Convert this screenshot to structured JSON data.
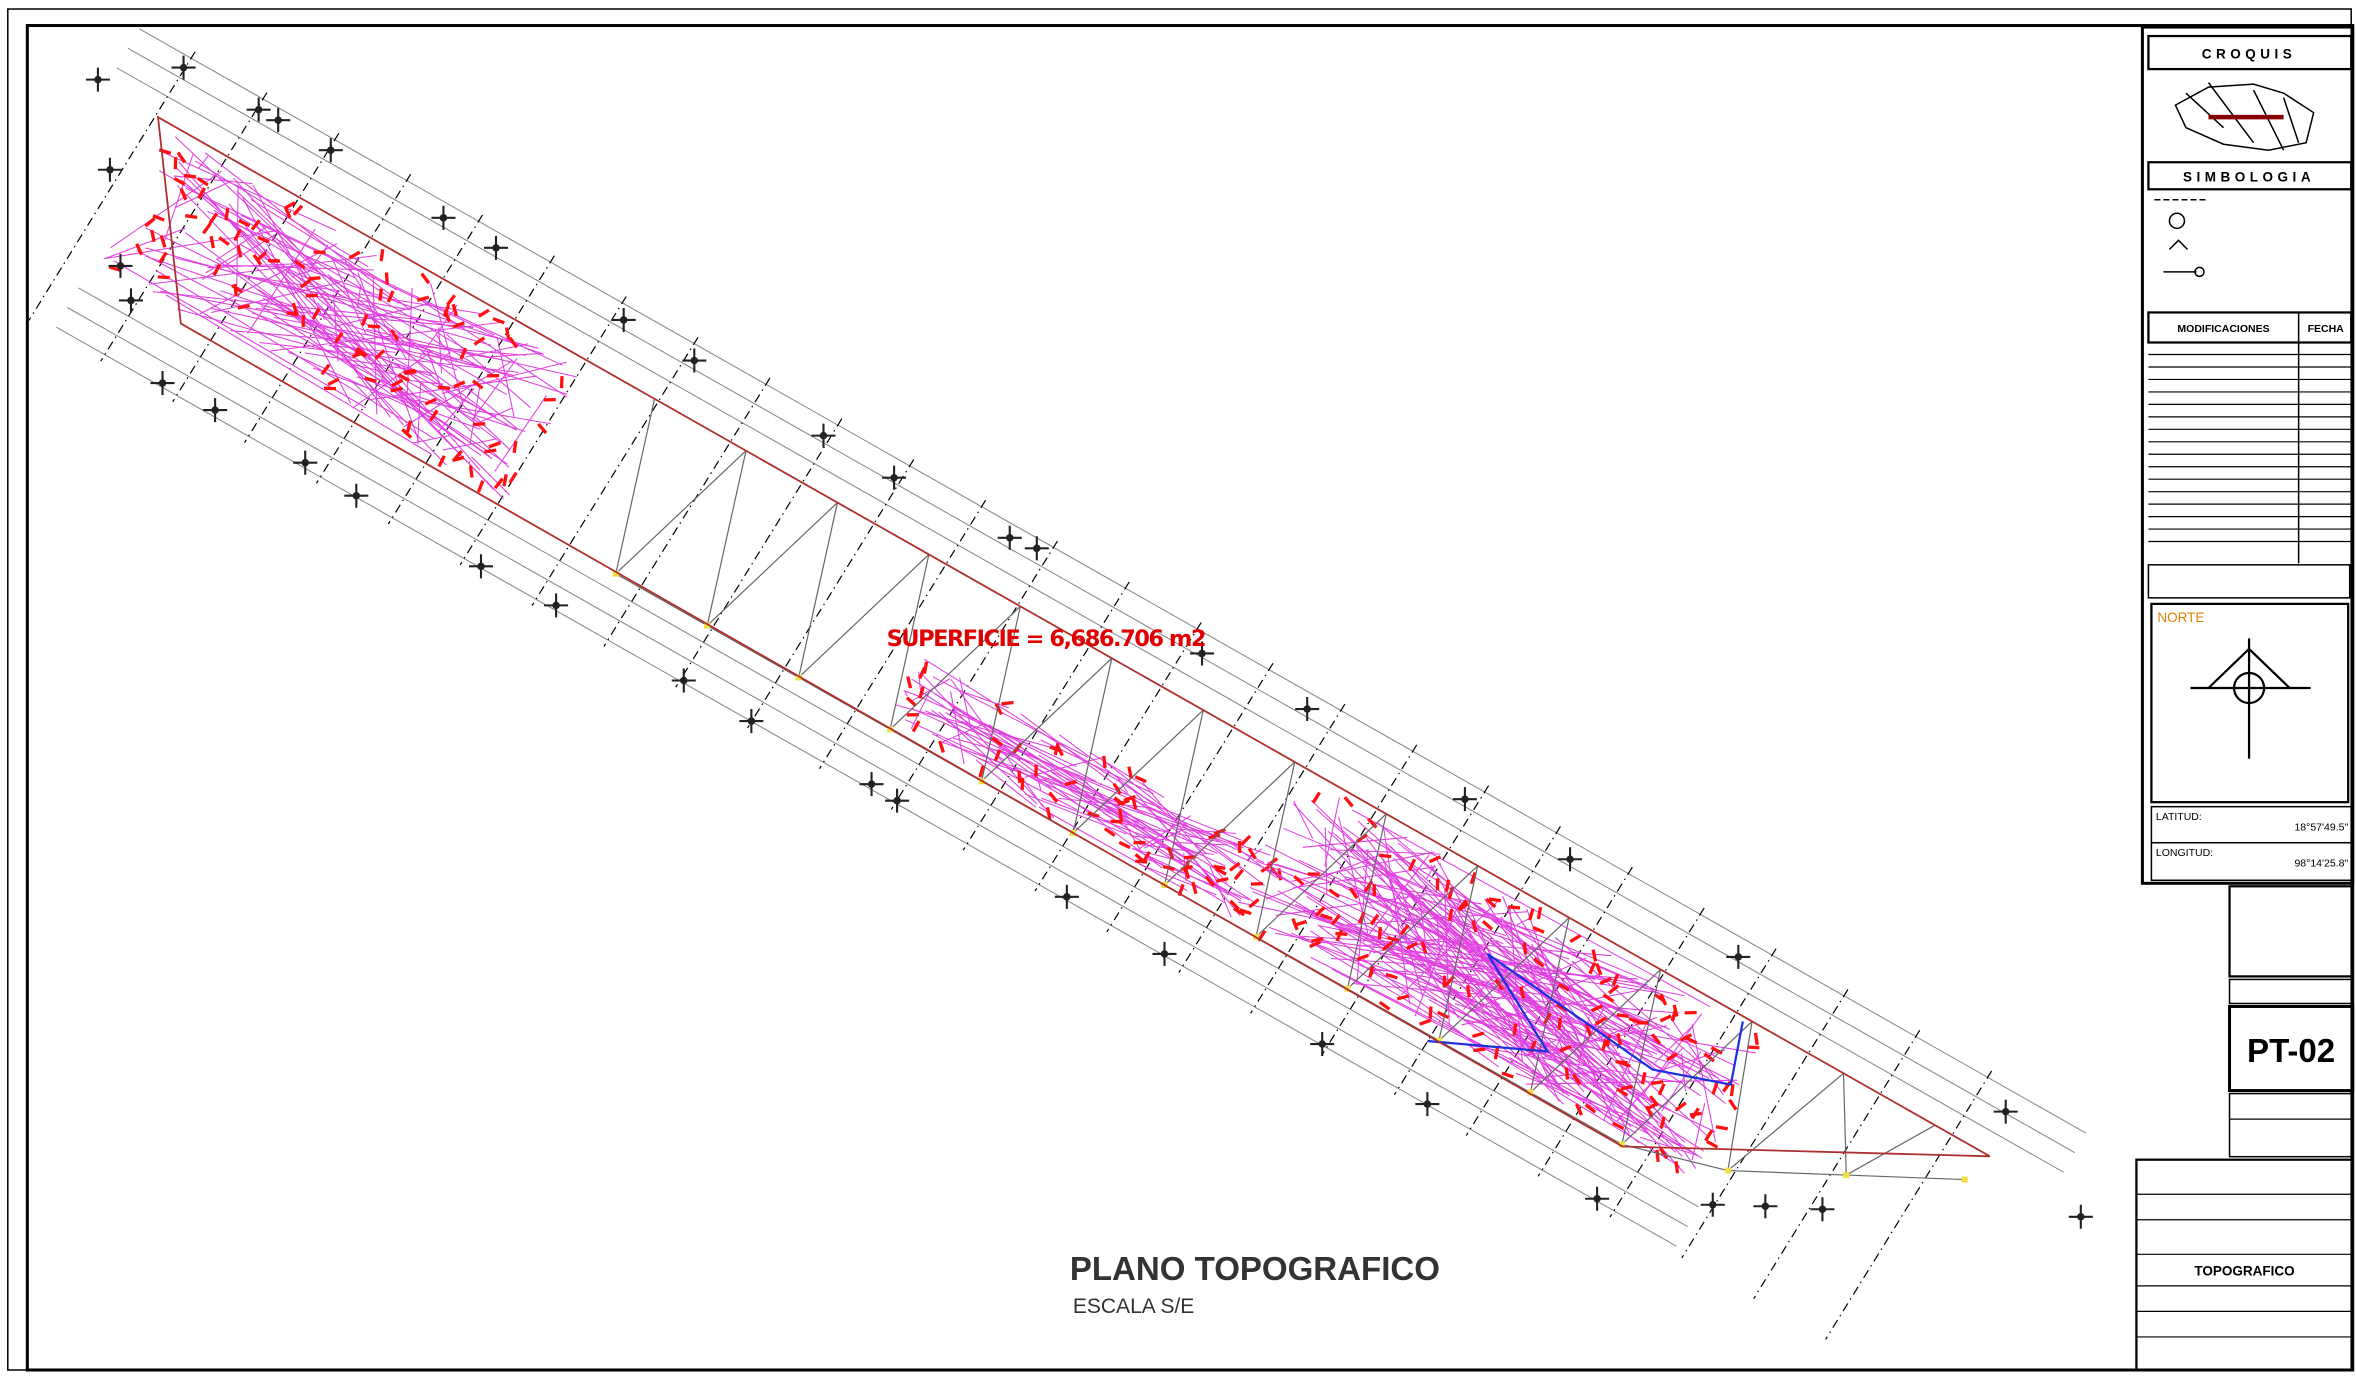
{
  "drawing": {
    "area_label": "SUPERFICIE = 6,686.706 m2",
    "title": "PLANO TOPOGRAFICO",
    "scale": "ESCALA S/E"
  },
  "title_block": {
    "sketch": "CROQUIS",
    "legend": "SIMBOLOGIA",
    "changes": "MODIFICACIONES",
    "date": "FECHA",
    "north": "NORTE",
    "latitude_label": "LATITUD:",
    "latitude": "18°57'49.5\"",
    "longitude_label": "LONGITUD:",
    "longitude": "98°14'25.8\"",
    "sheet": "PT-02",
    "content": "TOPOGRAFICO"
  }
}
